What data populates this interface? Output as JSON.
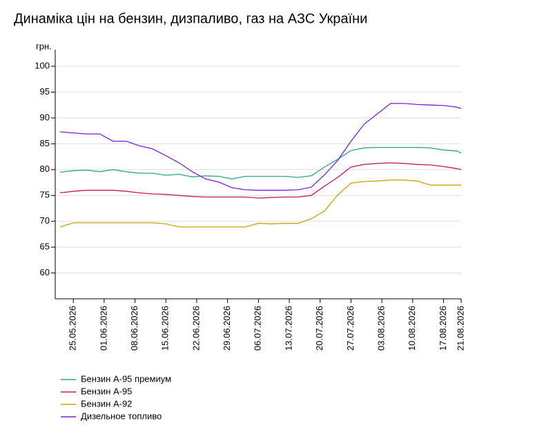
{
  "chart_data": {
    "type": "line",
    "title": "Динаміка цін на бензин, дизпаливо, газ на АЗС України",
    "y_label": "грн.",
    "x": [
      "22.05.2026",
      "25.05.2026",
      "28.05.2026",
      "31.05.2026",
      "03.06.2026",
      "06.06.2026",
      "09.06.2026",
      "12.06.2026",
      "15.06.2026",
      "18.06.2026",
      "21.06.2026",
      "24.06.2026",
      "27.06.2026",
      "30.06.2026",
      "03.07.2026",
      "06.07.2026",
      "09.07.2026",
      "12.07.2026",
      "15.07.2026",
      "18.07.2026",
      "21.07.2026",
      "24.07.2026",
      "27.07.2026",
      "30.07.2026",
      "02.08.2026",
      "05.08.2026",
      "08.08.2026",
      "11.08.2026",
      "14.08.2026",
      "17.08.2026",
      "20.08.2026",
      "21.08.2026"
    ],
    "series": [
      {
        "name": "Бензин А-95 премиум",
        "color": "#2aa58f",
        "values": [
          79.5,
          79.8,
          79.9,
          79.6,
          80.0,
          79.6,
          79.3,
          79.3,
          78.9,
          79.1,
          78.6,
          78.8,
          78.7,
          78.2,
          78.7,
          78.7,
          78.7,
          78.7,
          78.5,
          78.8,
          80.5,
          82.0,
          83.7,
          84.2,
          84.3,
          84.3,
          84.3,
          84.3,
          84.2,
          83.8,
          83.6,
          83.2
        ]
      },
      {
        "name": "Бензин А-95",
        "color": "#c8195e",
        "values": [
          75.5,
          75.8,
          76.0,
          76.0,
          76.0,
          75.8,
          75.5,
          75.3,
          75.2,
          75.0,
          74.8,
          74.7,
          74.7,
          74.7,
          74.7,
          74.5,
          74.6,
          74.7,
          74.7,
          75.0,
          76.8,
          78.5,
          80.5,
          81.0,
          81.2,
          81.3,
          81.2,
          81.0,
          80.9,
          80.6,
          80.2,
          80.0
        ]
      },
      {
        "name": "Бензин А-92",
        "color": "#c9a400",
        "values": [
          68.9,
          69.7,
          69.7,
          69.7,
          69.7,
          69.7,
          69.7,
          69.7,
          69.5,
          68.9,
          68.9,
          68.9,
          68.9,
          68.9,
          68.9,
          69.6,
          69.5,
          69.6,
          69.6,
          70.5,
          72.0,
          75.1,
          77.4,
          77.7,
          77.8,
          78.0,
          78.0,
          77.8,
          77.0,
          77.0,
          77.0,
          77.0
        ]
      },
      {
        "name": "Дизельное топливо",
        "color": "#7a1fd6",
        "values": [
          87.3,
          87.1,
          86.9,
          86.9,
          85.5,
          85.5,
          84.6,
          84.0,
          82.7,
          81.3,
          79.6,
          78.2,
          77.6,
          76.5,
          76.1,
          76.0,
          76.0,
          76.0,
          76.1,
          76.6,
          79.0,
          81.8,
          85.5,
          88.8,
          90.8,
          92.8,
          92.8,
          92.6,
          92.5,
          92.4,
          92.1,
          91.8
        ]
      }
    ],
    "xlim": [
      "22.05.2026",
      "21.08.2026"
    ],
    "xticks": [
      "25.05.2026",
      "01.06.2026",
      "08.06.2026",
      "15.06.2026",
      "22.06.2026",
      "29.06.2026",
      "06.07.2026",
      "13.07.2026",
      "20.07.2026",
      "27.07.2026",
      "03.08.2026",
      "10.08.2026",
      "17.08.2026",
      "21.08.2026"
    ],
    "ylim": [
      55,
      100
    ],
    "yticks": [
      60,
      65,
      70,
      75,
      80,
      85,
      90,
      95,
      100
    ],
    "grid": true
  }
}
